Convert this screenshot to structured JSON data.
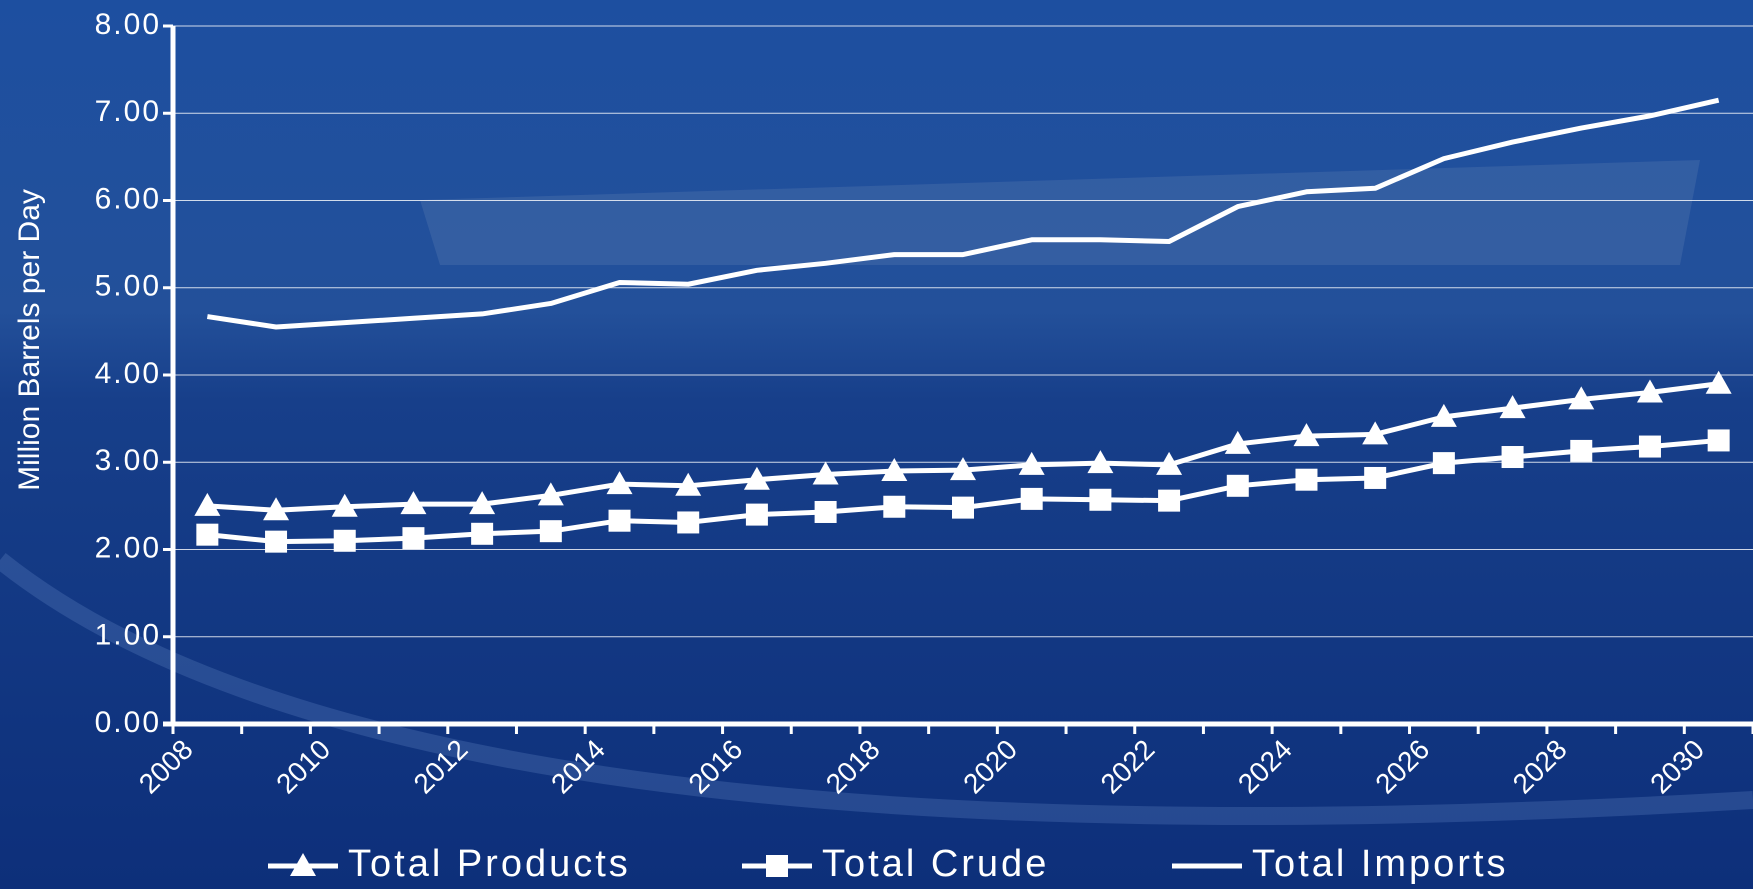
{
  "chart_data": {
    "type": "line",
    "y_label": "Million Barrels per Day",
    "categories": [
      "2008",
      null,
      "2010",
      null,
      "2012",
      null,
      "2014",
      null,
      "2016",
      null,
      "2018",
      null,
      "2020",
      null,
      "2022",
      null,
      "2024",
      null,
      "2026",
      null,
      "2028",
      null,
      "2030"
    ],
    "series": [
      {
        "name": "Total Products",
        "color": "#ffffff",
        "marker": "triangle",
        "values": [
          2.5,
          2.45,
          2.49,
          2.52,
          2.52,
          2.62,
          2.75,
          2.73,
          2.8,
          2.86,
          2.9,
          2.91,
          2.97,
          2.99,
          2.97,
          3.21,
          3.3,
          3.32,
          3.52,
          3.62,
          3.72,
          3.8,
          3.9
        ]
      },
      {
        "name": "Total Crude",
        "color": "#ffffff",
        "marker": "square",
        "values": [
          2.17,
          2.09,
          2.1,
          2.13,
          2.18,
          2.21,
          2.33,
          2.31,
          2.4,
          2.43,
          2.49,
          2.48,
          2.58,
          2.57,
          2.56,
          2.73,
          2.8,
          2.82,
          2.99,
          3.06,
          3.13,
          3.18,
          3.25
        ]
      },
      {
        "name": "Total Imports",
        "color": "#ffffff",
        "marker": "none",
        "values": [
          4.67,
          4.55,
          4.6,
          4.65,
          4.7,
          4.82,
          5.06,
          5.04,
          5.2,
          5.28,
          5.38,
          5.38,
          5.55,
          5.55,
          5.53,
          5.93,
          6.1,
          6.14,
          6.48,
          6.67,
          6.83,
          6.97,
          7.15
        ]
      }
    ],
    "ylim": [
      0,
      8
    ],
    "yticks": [
      {
        "value": 0,
        "label": "0.00"
      },
      {
        "value": 1,
        "label": "1.00"
      },
      {
        "value": 2,
        "label": "2.00"
      },
      {
        "value": 3,
        "label": "3.00"
      },
      {
        "value": 4,
        "label": "4.00"
      },
      {
        "value": 5,
        "label": "5.00"
      },
      {
        "value": 6,
        "label": "6.00"
      },
      {
        "value": 7,
        "label": "7.00"
      },
      {
        "value": 8,
        "label": "8.00"
      }
    ],
    "grid": true,
    "legend": "bottom"
  }
}
